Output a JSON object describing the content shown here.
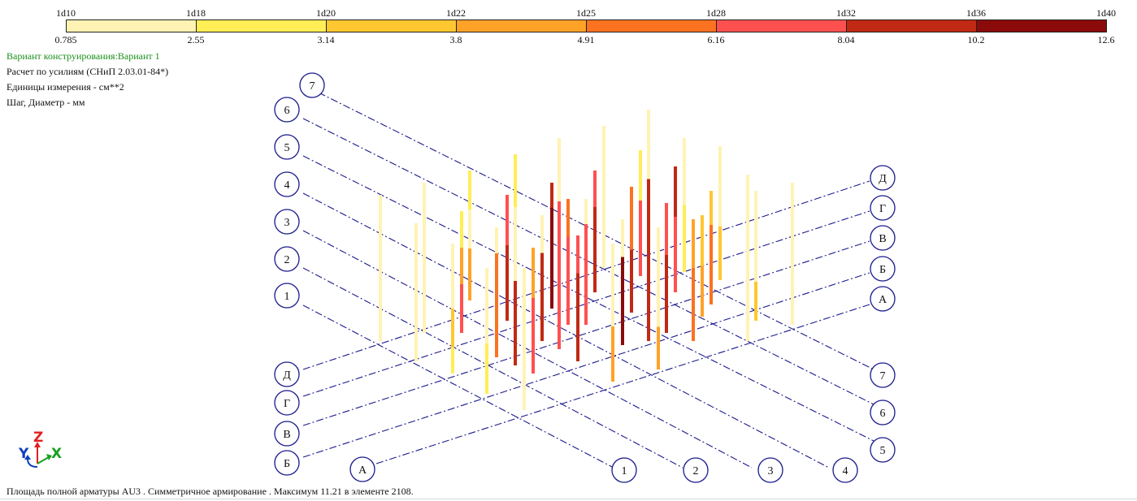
{
  "legend": {
    "top_labels": [
      "1d10",
      "1d18",
      "1d20",
      "1d22",
      "1d25",
      "1d28",
      "1d32",
      "1d36",
      "1d40"
    ],
    "bottom_labels": [
      "0.785",
      "2.55",
      "3.14",
      "3.8",
      "4.91",
      "6.16",
      "8.04",
      "10.2",
      "12.6"
    ],
    "colors": [
      "#fff3b4",
      "#ffee55",
      "#ffc730",
      "#ffa228",
      "#fb7220",
      "#ff5050",
      "#c02a14",
      "#8b0b0b"
    ]
  },
  "info": {
    "variant": "Вариант конструирования:Вариант 1",
    "calc": "Расчет по усилиям (СНиП 2.03.01-84*)",
    "units": "Единицы измерения - см**2",
    "step": "Шаг, Диаметр - мм"
  },
  "grid": {
    "numeric_axes": [
      "1",
      "2",
      "3",
      "4",
      "5",
      "6",
      "7"
    ],
    "letter_axes": [
      "А",
      "Б",
      "В",
      "Г",
      "Д"
    ],
    "line_color": "#1a1a8c"
  },
  "axes_triad": {
    "z": "Z",
    "y": "Y",
    "x": "X"
  },
  "status": {
    "text": "Площадь полной арматуры AU3 . Симметричное армирование . Максимум 11.21 в элементе 2108."
  }
}
